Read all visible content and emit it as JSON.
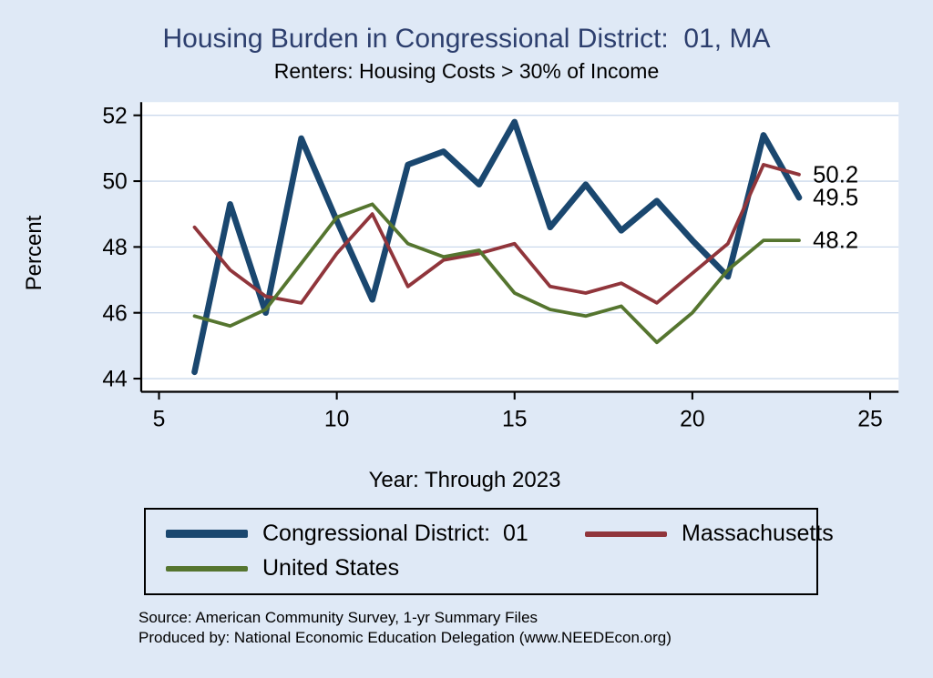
{
  "header": {
    "title": "Housing Burden in Congressional District:  01, MA",
    "subtitle": "Renters: Housing Costs > 30% of Income"
  },
  "colors": {
    "background": "#dfe9f6",
    "title_text": "#2d3f6e",
    "grid": "#ccd9ec",
    "axis": "#000000"
  },
  "chart_data": {
    "type": "line",
    "title": "Housing Burden in Congressional District:  01, MA",
    "subtitle": "Renters: Housing Costs > 30% of Income",
    "xlabel": "Year: Through 2023",
    "ylabel": "Percent",
    "xlim": [
      4.5,
      25.8
    ],
    "ylim": [
      43.6,
      52.4
    ],
    "xticks": [
      5,
      10,
      15,
      20,
      25
    ],
    "yticks": [
      44,
      46,
      48,
      50,
      52
    ],
    "grid": "horizontal",
    "grid_color": "#ccd9ec",
    "legend_position": "bottom",
    "x": [
      6,
      7,
      8,
      9,
      10,
      11,
      12,
      13,
      14,
      15,
      16,
      17,
      18,
      19,
      20,
      21,
      22,
      23
    ],
    "series": [
      {
        "name": "Congressional District:  01",
        "color": "#1a476f",
        "line_width": 7,
        "end_label": "49.5",
        "values": [
          44.2,
          49.3,
          46.0,
          51.3,
          48.8,
          46.4,
          50.5,
          50.9,
          49.9,
          51.8,
          48.6,
          49.9,
          48.5,
          49.4,
          48.2,
          47.1,
          51.4,
          49.5
        ]
      },
      {
        "name": "Massachusetts",
        "color": "#90353b",
        "line_width": 4,
        "end_label": "50.2",
        "values": [
          48.6,
          47.3,
          46.5,
          46.3,
          47.8,
          49.0,
          46.8,
          47.6,
          47.8,
          48.1,
          46.8,
          46.6,
          46.9,
          46.3,
          47.2,
          48.1,
          50.5,
          50.2
        ]
      },
      {
        "name": "United States",
        "color": "#55752f",
        "line_width": 4,
        "end_label": "48.2",
        "values": [
          45.9,
          45.6,
          46.1,
          47.5,
          48.9,
          49.3,
          48.1,
          47.7,
          47.9,
          46.6,
          46.1,
          45.9,
          46.2,
          45.1,
          46.0,
          47.3,
          48.2,
          48.2
        ]
      }
    ]
  },
  "notes": {
    "source": "Source: American Community Survey, 1-yr Summary Files",
    "produced_by": "Produced by: National Economic Education Delegation (www.NEEDEcon.org)"
  }
}
